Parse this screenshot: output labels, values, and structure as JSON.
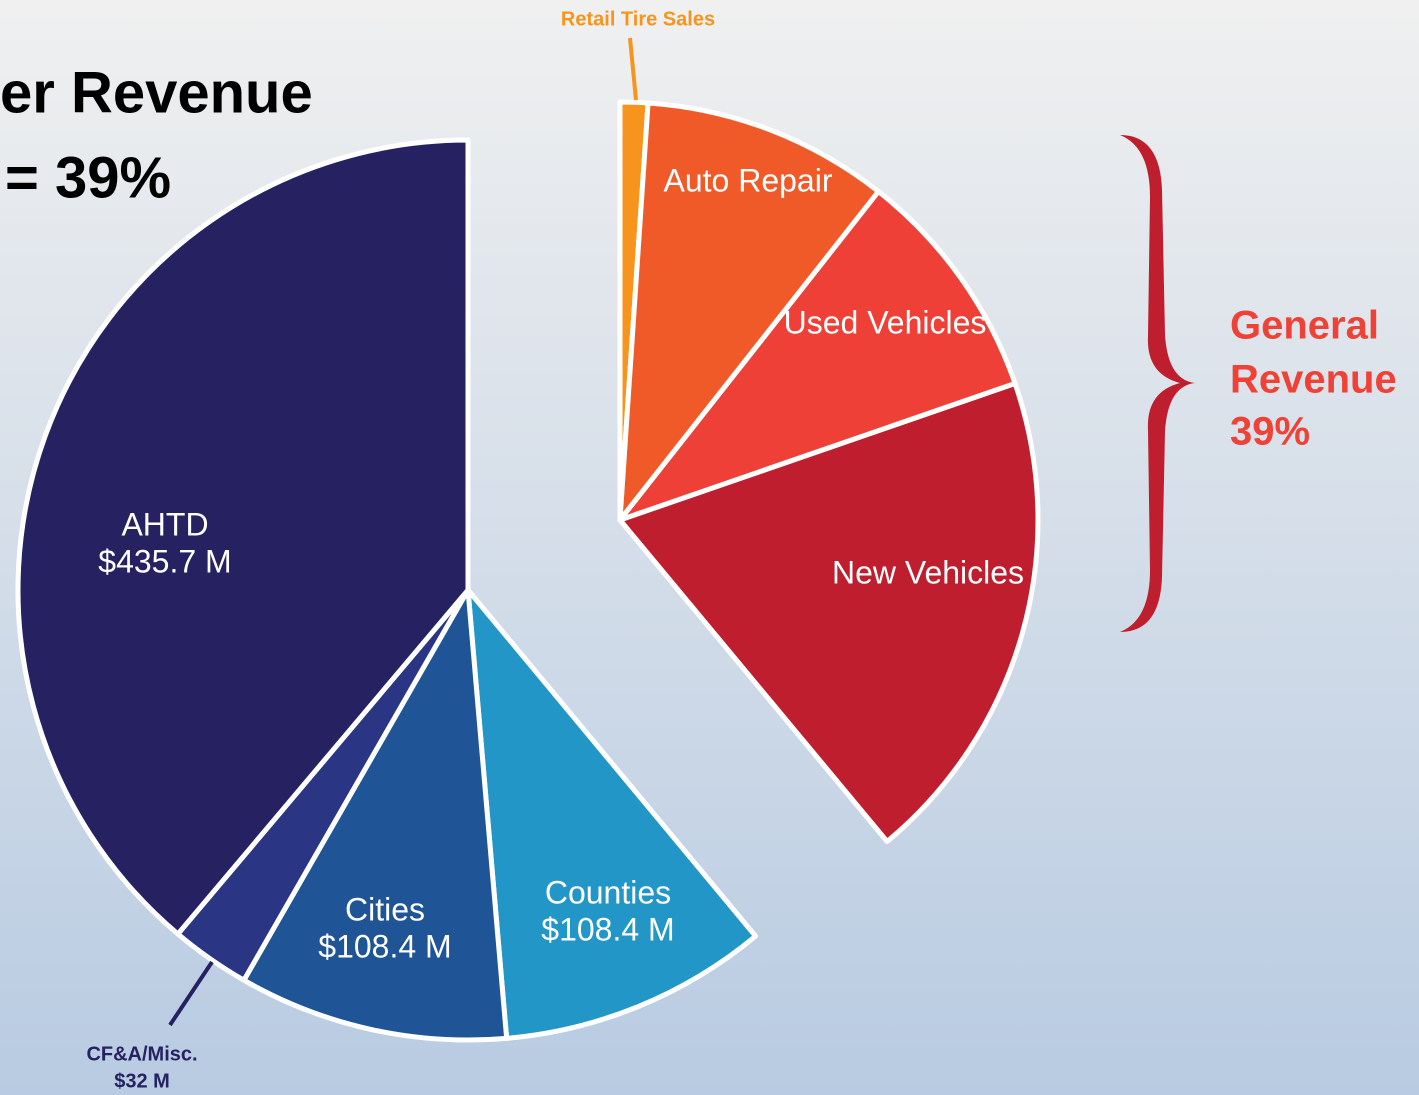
{
  "chart_data": {
    "type": "pie",
    "title": [
      "er Revenue",
      "= 39%"
    ],
    "annotation": [
      "General",
      "Revenue",
      "39%"
    ],
    "categories": [
      "Retail Tire Sales",
      "Auto Repair",
      "Used Vehicles",
      "New Vehicles",
      "Counties",
      "Cities",
      "CF&A/Misc.",
      "AHTD"
    ],
    "values": [
      12,
      107,
      102,
      216,
      108.4,
      108.4,
      32,
      435.7
    ],
    "value_labels": [
      null,
      null,
      null,
      null,
      "$108.4 M",
      "$108.4 M",
      "$32 M",
      "$435.7 M"
    ],
    "colors": [
      "#f7941d",
      "#f05a28",
      "#ee4036",
      "#be1e2d",
      "#2396c8",
      "#1f5597",
      "#2a3583",
      "#262262"
    ]
  }
}
